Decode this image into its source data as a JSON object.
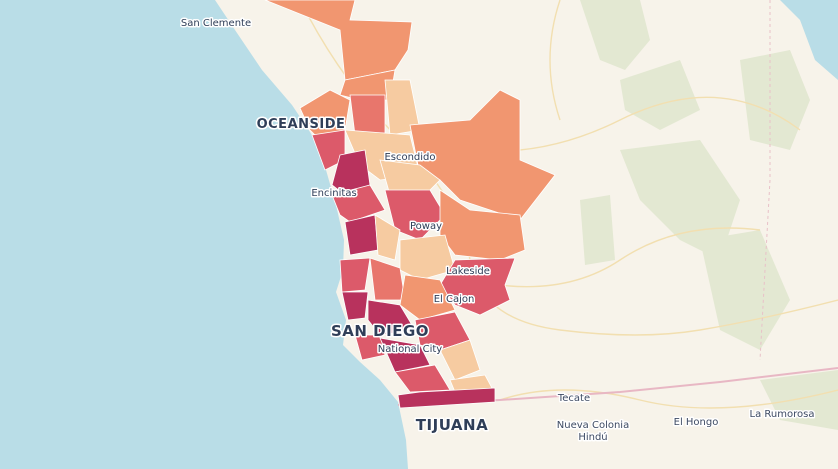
{
  "map": {
    "labels": [
      {
        "text": "San Clemente"
      },
      {
        "text": "OCEANSIDE"
      },
      {
        "text": "Escondido"
      },
      {
        "text": "Encinitas"
      },
      {
        "text": "Poway"
      },
      {
        "text": "Lakeside"
      },
      {
        "text": "El Cajon"
      },
      {
        "text": "SAN DIEGO"
      },
      {
        "text": "National City"
      },
      {
        "text": "TIJUANA"
      },
      {
        "text": "Tecate"
      },
      {
        "lines": [
          "Nueva Colonia",
          "Hindú"
        ]
      },
      {
        "text": "El Hongo"
      },
      {
        "text": "La Rumorosa"
      }
    ]
  }
}
